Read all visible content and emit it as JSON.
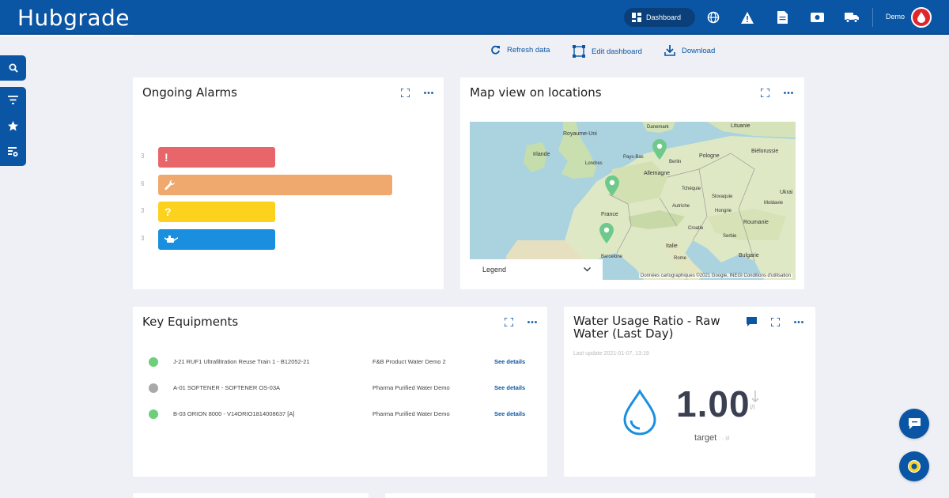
{
  "app": {
    "logo": "Hubgrade"
  },
  "topnav": {
    "dashboard_label": "Dashboard",
    "user_name": "Demo"
  },
  "actions": {
    "refresh": "Refresh data",
    "edit": "Edit dashboard",
    "download": "Download"
  },
  "alarms": {
    "title": "Ongoing Alarms",
    "rows": [
      {
        "count": "3",
        "symbol": "!",
        "color": "#e8666a",
        "value": 3
      },
      {
        "count": "6",
        "symbol": "wrench-icon",
        "color": "#efa86e",
        "value": 6
      },
      {
        "count": "3",
        "symbol": "?",
        "color": "#fdd21f",
        "value": 3
      },
      {
        "count": "3",
        "symbol": "oil-can-icon",
        "color": "#1a8fe0",
        "value": 3
      }
    ]
  },
  "map": {
    "title": "Map view on locations",
    "legend_label": "Legend",
    "attribution": "Données cartographiques ©2021 Google, INEGI   Conditions d'utilisation",
    "labels": {
      "royaume_uni": "Royaume-Uni",
      "irlande": "Irlande",
      "londres": "Londres",
      "pays_bas": "Pays-Bas",
      "berlin": "Berlin",
      "allemagne": "Allemagne",
      "pologne": "Pologne",
      "lituanie": "Lituanie",
      "bielorussie": "Biélorussie",
      "danemark": "Danemark",
      "tchequie": "Tchéquie",
      "slovaquie": "Slovaquie",
      "ukraine": "Ukrai",
      "france": "France",
      "autriche": "Autriche",
      "hongrie": "Hongrie",
      "moldavie": "Moldavie",
      "croatie": "Croatie",
      "roumanie": "Roumanie",
      "serbie": "Serbie",
      "italie": "Italie",
      "bulgarie": "Bulgarie",
      "barcelone": "Barcelone",
      "rome": "Rome"
    }
  },
  "equipments": {
    "title": "Key Equipments",
    "rows": [
      {
        "status_color": "#6ccf7a",
        "name": "J-21 RUF1 Ultrafiltration Reuse Train 1 - B12052-21",
        "site": "F&B Product Water Demo 2",
        "link": "See details"
      },
      {
        "status_color": "#a9a9a9",
        "name": "A-01 SOFTENER - SOFTENER OS-03A",
        "site": "Pharma Purified Water Demo",
        "link": "See details"
      },
      {
        "status_color": "#6ccf7a",
        "name": "B-03 ORION 8000 - V14ORIO1814008637 [A]",
        "site": "Pharma Purified Water Demo",
        "link": "See details"
      }
    ]
  },
  "water": {
    "title": "Water Usage Ratio - Raw Water (Last Day)",
    "last_update": "Last update 2021-01-07, 13:19",
    "value": "1.00",
    "unit": "l/l",
    "target_label": "target",
    "target_value": ": - l/l"
  }
}
